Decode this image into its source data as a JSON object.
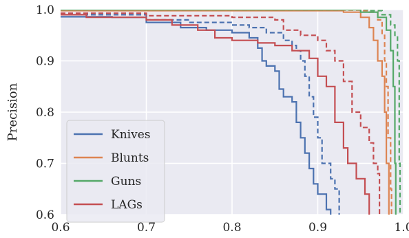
{
  "chart_data": {
    "type": "line",
    "title": "",
    "xlabel": "",
    "ylabel": "Precision",
    "xlim": [
      0.6,
      1.0
    ],
    "ylim": [
      0.6,
      1.0
    ],
    "x_ticks": [
      "0.6",
      "0.7",
      "0.8",
      "0.9",
      "1.0"
    ],
    "y_ticks": [
      "0.6",
      "0.7",
      "0.8",
      "0.9",
      "1.0"
    ],
    "grid": true,
    "legend_position": "lower-left",
    "background": "#EAEAF2",
    "series": [
      {
        "name": "Knives",
        "color": "#4C72B0",
        "style": "solid",
        "points": [
          [
            0.6,
            0.986
          ],
          [
            0.66,
            0.985
          ],
          [
            0.7,
            0.975
          ],
          [
            0.74,
            0.965
          ],
          [
            0.77,
            0.96
          ],
          [
            0.8,
            0.955
          ],
          [
            0.82,
            0.945
          ],
          [
            0.83,
            0.925
          ],
          [
            0.835,
            0.9
          ],
          [
            0.84,
            0.89
          ],
          [
            0.85,
            0.88
          ],
          [
            0.855,
            0.845
          ],
          [
            0.86,
            0.83
          ],
          [
            0.87,
            0.82
          ],
          [
            0.875,
            0.78
          ],
          [
            0.88,
            0.75
          ],
          [
            0.885,
            0.72
          ],
          [
            0.89,
            0.69
          ],
          [
            0.895,
            0.66
          ],
          [
            0.9,
            0.64
          ],
          [
            0.91,
            0.61
          ],
          [
            0.915,
            0.6
          ]
        ]
      },
      {
        "name": "Knives",
        "color": "#4C72B0",
        "style": "dashed",
        "points": [
          [
            0.6,
            0.99
          ],
          [
            0.7,
            0.98
          ],
          [
            0.75,
            0.975
          ],
          [
            0.8,
            0.97
          ],
          [
            0.82,
            0.965
          ],
          [
            0.84,
            0.955
          ],
          [
            0.86,
            0.94
          ],
          [
            0.87,
            0.93
          ],
          [
            0.875,
            0.92
          ],
          [
            0.88,
            0.9
          ],
          [
            0.885,
            0.87
          ],
          [
            0.89,
            0.83
          ],
          [
            0.895,
            0.79
          ],
          [
            0.9,
            0.75
          ],
          [
            0.905,
            0.7
          ],
          [
            0.915,
            0.67
          ],
          [
            0.92,
            0.65
          ],
          [
            0.925,
            0.6
          ]
        ]
      },
      {
        "name": "Blunts",
        "color": "#DD8452",
        "style": "solid",
        "points": [
          [
            0.6,
            0.998
          ],
          [
            0.9,
            0.998
          ],
          [
            0.93,
            0.995
          ],
          [
            0.95,
            0.985
          ],
          [
            0.96,
            0.965
          ],
          [
            0.965,
            0.94
          ],
          [
            0.97,
            0.9
          ],
          [
            0.975,
            0.87
          ],
          [
            0.978,
            0.8
          ],
          [
            0.98,
            0.7
          ],
          [
            0.983,
            0.6
          ]
        ]
      },
      {
        "name": "Blunts",
        "color": "#DD8452",
        "style": "dashed",
        "points": [
          [
            0.6,
            0.999
          ],
          [
            0.95,
            0.998
          ],
          [
            0.96,
            0.995
          ],
          [
            0.97,
            0.98
          ],
          [
            0.975,
            0.95
          ],
          [
            0.978,
            0.9
          ],
          [
            0.98,
            0.85
          ],
          [
            0.982,
            0.75
          ],
          [
            0.985,
            0.65
          ],
          [
            0.986,
            0.6
          ]
        ]
      },
      {
        "name": "Guns",
        "color": "#55A868",
        "style": "solid",
        "points": [
          [
            0.6,
            1.0
          ],
          [
            0.93,
            1.0
          ],
          [
            0.95,
            0.995
          ],
          [
            0.97,
            0.985
          ],
          [
            0.98,
            0.96
          ],
          [
            0.985,
            0.92
          ],
          [
            0.988,
            0.85
          ],
          [
            0.99,
            0.7
          ],
          [
            0.991,
            0.6
          ]
        ]
      },
      {
        "name": "Guns",
        "color": "#55A868",
        "style": "dashed",
        "points": [
          [
            0.6,
            1.0
          ],
          [
            0.94,
            1.0
          ],
          [
            0.96,
            0.998
          ],
          [
            0.975,
            0.99
          ],
          [
            0.985,
            0.97
          ],
          [
            0.99,
            0.95
          ],
          [
            0.993,
            0.9
          ],
          [
            0.995,
            0.7
          ],
          [
            0.996,
            0.6
          ]
        ]
      },
      {
        "name": "LAGs",
        "color": "#C44E52",
        "style": "solid",
        "points": [
          [
            0.6,
            0.99
          ],
          [
            0.63,
            0.985
          ],
          [
            0.7,
            0.98
          ],
          [
            0.73,
            0.97
          ],
          [
            0.76,
            0.96
          ],
          [
            0.78,
            0.945
          ],
          [
            0.8,
            0.94
          ],
          [
            0.83,
            0.935
          ],
          [
            0.85,
            0.93
          ],
          [
            0.87,
            0.92
          ],
          [
            0.89,
            0.905
          ],
          [
            0.9,
            0.87
          ],
          [
            0.91,
            0.85
          ],
          [
            0.92,
            0.78
          ],
          [
            0.93,
            0.73
          ],
          [
            0.935,
            0.7
          ],
          [
            0.945,
            0.67
          ],
          [
            0.955,
            0.64
          ],
          [
            0.96,
            0.6
          ]
        ]
      },
      {
        "name": "LAGs",
        "color": "#C44E52",
        "style": "dashed",
        "points": [
          [
            0.6,
            0.993
          ],
          [
            0.7,
            0.988
          ],
          [
            0.8,
            0.985
          ],
          [
            0.85,
            0.98
          ],
          [
            0.86,
            0.96
          ],
          [
            0.88,
            0.95
          ],
          [
            0.9,
            0.94
          ],
          [
            0.91,
            0.92
          ],
          [
            0.92,
            0.9
          ],
          [
            0.93,
            0.86
          ],
          [
            0.94,
            0.8
          ],
          [
            0.95,
            0.77
          ],
          [
            0.96,
            0.74
          ],
          [
            0.965,
            0.7
          ],
          [
            0.97,
            0.68
          ],
          [
            0.972,
            0.6
          ]
        ]
      }
    ],
    "legend": [
      {
        "label": "Knives",
        "color": "#4C72B0"
      },
      {
        "label": "Blunts",
        "color": "#DD8452"
      },
      {
        "label": "Guns",
        "color": "#55A868"
      },
      {
        "label": "LAGs",
        "color": "#C44E52"
      }
    ]
  }
}
